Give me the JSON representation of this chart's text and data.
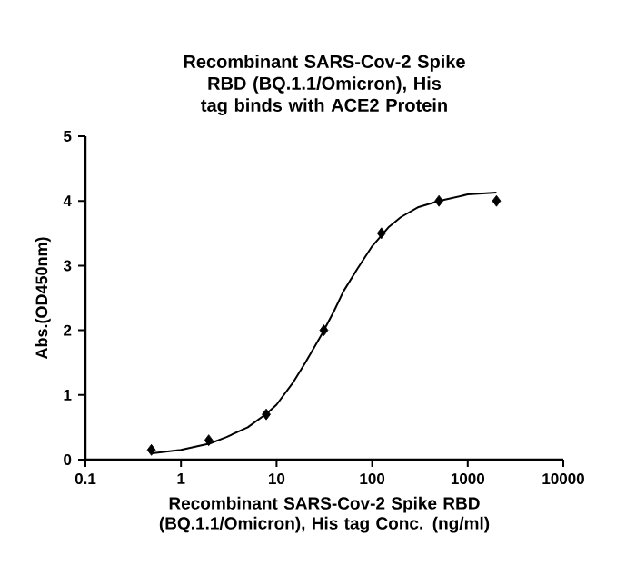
{
  "chart_data": {
    "type": "scatter",
    "title": "Recombinant SARS-Cov-2 Spike RBD (BQ.1.1/Omicron), His tag binds with ACE2 Protein",
    "xlabel": "Recombinant SARS-Cov-2 Spike RBD (BQ.1.1/Omicron), His tag Conc. (ng/ml)",
    "ylabel": "Abs.(OD450nm)",
    "log": "x",
    "xlim": [
      0.1,
      10000
    ],
    "xticks": [
      0.1,
      1,
      10,
      100,
      1000,
      10000
    ],
    "ylim": [
      0,
      5
    ],
    "yticks": [
      0,
      1,
      2,
      3,
      4,
      5
    ],
    "grid": false,
    "series": [
      {
        "marker": "diamond",
        "color": "#000000",
        "x": [
          0.49,
          1.95,
          7.8,
          31.25,
          125,
          500,
          2000
        ],
        "values": [
          0.15,
          0.3,
          0.7,
          2.0,
          3.5,
          4.0,
          4.0
        ]
      },
      {
        "type": "line",
        "marker": "none",
        "color": "#000000",
        "x": [
          0.5,
          1,
          2,
          3,
          5,
          8,
          10,
          15,
          20,
          30,
          40,
          50,
          70,
          100,
          150,
          200,
          300,
          500,
          1000,
          2000
        ],
        "values": [
          0.1,
          0.15,
          0.25,
          0.35,
          0.5,
          0.72,
          0.85,
          1.2,
          1.5,
          1.95,
          2.3,
          2.6,
          2.95,
          3.3,
          3.6,
          3.75,
          3.9,
          4.0,
          4.1,
          4.13
        ]
      }
    ]
  }
}
